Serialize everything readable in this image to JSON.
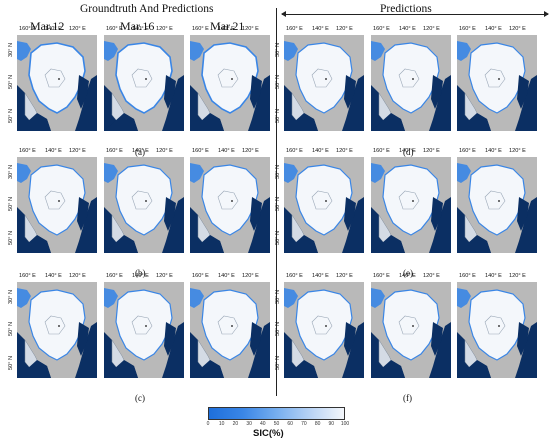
{
  "left_title": "Groundtruth And Predictions",
  "right_title": "Predictions",
  "dates": [
    "Mar.12",
    "Mar.16",
    "Mar.21"
  ],
  "lon_labels": [
    "160° E",
    "140° E",
    "120° E"
  ],
  "lat_labels": [
    "30° N",
    "50° N",
    "50° N"
  ],
  "panel_labels": [
    "(a)",
    "(b)",
    "(c)",
    "(d)",
    "(e)",
    "(f)"
  ],
  "colorbar": {
    "label": "SIC(%)",
    "ticks": [
      "0",
      "10",
      "20",
      "30",
      "40",
      "50",
      "60",
      "70",
      "80",
      "90",
      "100"
    ],
    "colors": {
      "ocean": "#0b2f63",
      "land": "#b9b9b9",
      "ice": "#f4f7fb",
      "ice_edge": "#3a86e6"
    }
  }
}
